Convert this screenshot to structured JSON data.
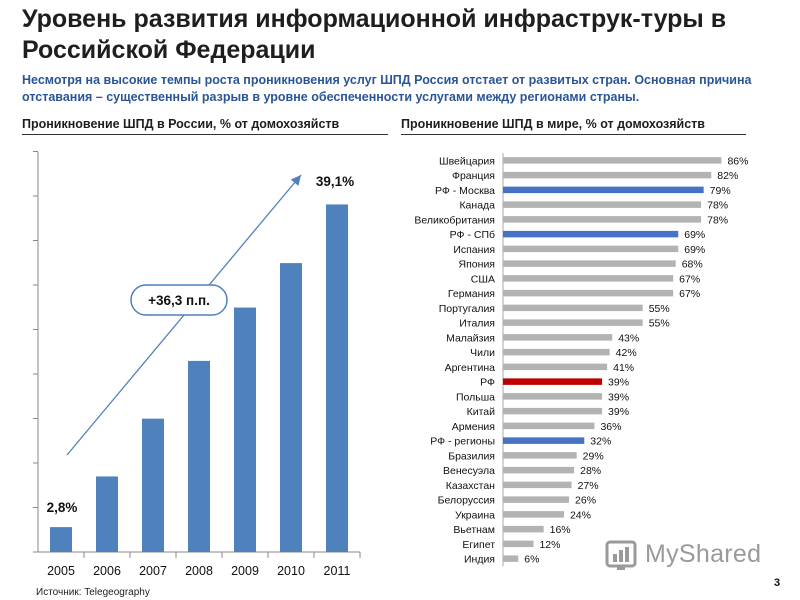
{
  "header": {
    "title": "Уровень развития информационной инфраструк-туры в Российской Федерации",
    "subtitle": "Несмотря на высокие темпы роста проникновения услуг ШПД Россия отстает от развитых стран. Основная причина отставания – существенный разрыв в уровне обеспеченности услугами между регионами страны."
  },
  "left_section": {
    "title": "Проникновение ШПД в России, % от домохозяйств"
  },
  "right_section": {
    "title": "Проникновение ШПД в мире, % от домохозяйств"
  },
  "footer": {
    "source": "Источник: Telegeography",
    "page_number": "3"
  },
  "watermark": {
    "text": "MyShared"
  },
  "colors": {
    "russia_bar": "#4f81bd",
    "world_bar_default": "#b3b3b3",
    "world_bar_rf_highlight": "#4472c4",
    "world_bar_rf": "#c00000"
  },
  "chart_data": [
    {
      "type": "bar",
      "categories": [
        "2005",
        "2006",
        "2007",
        "2008",
        "2009",
        "2010",
        "2011"
      ],
      "values": [
        2.8,
        8.5,
        15.0,
        21.5,
        27.5,
        32.5,
        39.1
      ],
      "ylim": [
        0,
        45
      ],
      "ylabel": "",
      "xlabel": "",
      "annotations": [
        {
          "text": "2,8%",
          "category": "2005"
        },
        {
          "text": "39,1%",
          "category": "2011"
        },
        {
          "text": "+36,3 п.п."
        }
      ],
      "grid": false
    },
    {
      "type": "bar",
      "orientation": "horizontal",
      "categories": [
        "Швейцария",
        "Франция",
        "РФ - Москва",
        "Канада",
        "Великобритания",
        "РФ - СПб",
        "Испания",
        "Япония",
        "США",
        "Германия",
        "Португалия",
        "Италия",
        "Малайзия",
        "Чили",
        "Аргентина",
        "РФ",
        "Польша",
        "Китай",
        "Армения",
        "РФ - регионы",
        "Бразилия",
        "Венесуэла",
        "Казахстан",
        "Белоруссия",
        "Украина",
        "Вьетнам",
        "Египет",
        "Индия"
      ],
      "values": [
        86,
        82,
        79,
        78,
        78,
        69,
        69,
        68,
        67,
        67,
        55,
        55,
        43,
        42,
        41,
        39,
        39,
        39,
        36,
        32,
        29,
        28,
        27,
        26,
        24,
        16,
        12,
        6
      ],
      "labels": [
        "86%",
        "82%",
        "79%",
        "78%",
        "78%",
        "69%",
        "69%",
        "68%",
        "67%",
        "67%",
        "55%",
        "55%",
        "43%",
        "42%",
        "41%",
        "39%",
        "39%",
        "39%",
        "36%",
        "32%",
        "29%",
        "28%",
        "27%",
        "26%",
        "24%",
        "16%",
        "12%",
        "6%"
      ],
      "highlight": {
        "РФ - Москва": "blue",
        "РФ - СПб": "blue",
        "РФ - регионы": "blue",
        "РФ": "red"
      },
      "xlim": [
        0,
        100
      ],
      "grid": false
    }
  ]
}
